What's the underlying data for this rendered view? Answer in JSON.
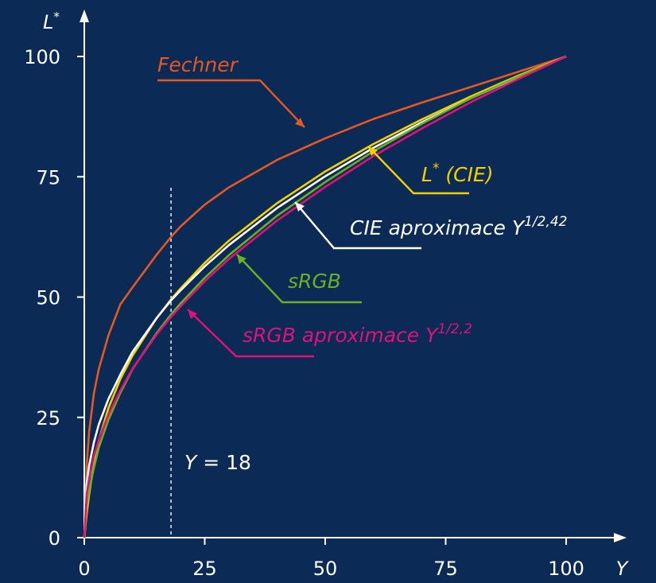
{
  "chart_data": {
    "type": "line",
    "xlabel": "Y",
    "ylabel": "L*",
    "xlim": [
      0,
      100
    ],
    "ylim": [
      0,
      100
    ],
    "xticks": [
      "0",
      "25",
      "50",
      "75",
      "100"
    ],
    "yticks": [
      "0",
      "25",
      "50",
      "75",
      "100"
    ],
    "grid": false,
    "background": "#0b2a55",
    "marker": {
      "x": 18,
      "text": "Y = 18",
      "var": "Y",
      "eq": " = 18"
    },
    "series": [
      {
        "name": "Fechner",
        "label_main": "Fechner",
        "label_sup": "",
        "color": "#e5581f",
        "x": [
          0.1,
          0.5,
          1,
          2,
          3,
          5,
          7.5,
          10,
          15,
          18,
          20,
          25,
          30,
          40,
          50,
          60,
          70,
          80,
          90,
          100
        ],
        "y": [
          0,
          15.0,
          22.0,
          30.0,
          35.0,
          42.0,
          48.5,
          52.0,
          58.8,
          62.5,
          64.7,
          69.2,
          72.8,
          78.5,
          83.0,
          87.0,
          90.4,
          93.6,
          96.8,
          100
        ]
      },
      {
        "name": "L* (CIE)",
        "label_main": "L",
        "label_sup": "*",
        "label_rest": " (CIE)",
        "color": "#f2d100",
        "x": [
          0,
          0.5,
          1,
          2,
          3,
          5,
          7.5,
          10,
          15,
          18,
          20,
          25,
          30,
          40,
          50,
          60,
          70,
          80,
          90,
          100
        ],
        "y": [
          0,
          5.0,
          9.0,
          15.5,
          20.2,
          26.9,
          33.0,
          37.8,
          45.6,
          49.5,
          51.8,
          57.1,
          61.7,
          69.5,
          76.1,
          81.8,
          86.9,
          91.6,
          96.0,
          100
        ]
      },
      {
        "name": "CIE aproximace Y1/2,42",
        "label_main": "CIE aproximace Y",
        "label_sup": "1/2,42",
        "color": "#ffffff",
        "x": [
          0,
          0.5,
          1,
          2,
          3,
          5,
          7.5,
          10,
          15,
          18,
          20,
          25,
          30,
          40,
          50,
          60,
          70,
          80,
          90,
          100
        ],
        "y": [
          0,
          11.2,
          15.0,
          19.8,
          23.5,
          28.8,
          33.9,
          38.6,
          45.6,
          49.3,
          51.4,
          56.4,
          60.8,
          68.5,
          75.1,
          81.0,
          86.3,
          91.2,
          95.7,
          100
        ]
      },
      {
        "name": "sRGB",
        "label_main": "sRGB",
        "label_sup": "",
        "color": "#6ab023",
        "x": [
          0,
          0.5,
          1,
          2,
          3,
          5,
          7.5,
          10,
          15,
          18,
          20,
          25,
          30,
          40,
          50,
          60,
          70,
          80,
          90,
          100
        ],
        "y": [
          0,
          6.8,
          9.9,
          14.5,
          18.7,
          24.5,
          30.1,
          35.0,
          42.5,
          46.4,
          48.7,
          54.0,
          58.7,
          66.9,
          73.9,
          80.3,
          86.0,
          91.2,
          95.8,
          100
        ]
      },
      {
        "name": "sRGB aproximace Y1/2,2",
        "label_main": "sRGB aproximace Y",
        "label_sup": "1/2,2",
        "color": "#e0127a",
        "x": [
          0,
          0.5,
          1,
          2,
          3,
          5,
          7.5,
          10,
          15,
          18,
          20,
          25,
          30,
          40,
          50,
          60,
          70,
          80,
          90,
          100
        ],
        "y": [
          0,
          9.0,
          12.3,
          16.9,
          20.3,
          25.6,
          30.6,
          35.1,
          42.2,
          45.9,
          48.1,
          53.3,
          57.9,
          65.9,
          72.9,
          79.3,
          85.0,
          90.4,
          95.3,
          100
        ]
      }
    ]
  }
}
